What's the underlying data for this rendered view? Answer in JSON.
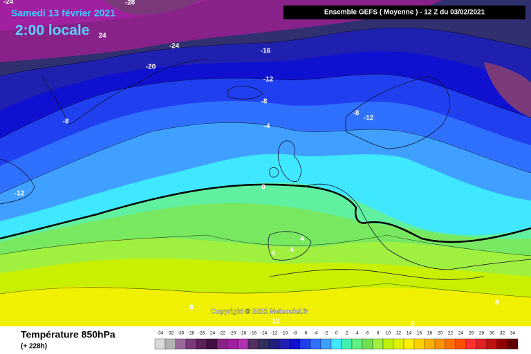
{
  "title": "Samedi 13 février 2021",
  "subtitle": "2:00 locale",
  "header": "Ensemble GEFS  ( Moyenne )  - 12 Z du 03/02/2021",
  "copyright": "Copyright © 2021 Meteociel.fr",
  "contour_labels": [
    "-24",
    "-28",
    "24",
    "-24",
    "-20",
    "-16",
    "-12",
    "-8",
    "-8",
    "-4",
    "-8",
    "-12",
    "-12",
    "0",
    "4",
    "4",
    "4",
    "8",
    "8",
    "12",
    "8"
  ],
  "footer": {
    "title": "Température 850hPa",
    "subtitle": "(+ 228h)"
  },
  "scale": {
    "values": [
      -34,
      -32,
      -30,
      -28,
      -26,
      -24,
      -22,
      -20,
      -18,
      -16,
      -14,
      -12,
      -10,
      -8,
      -6,
      -4,
      -2,
      0,
      2,
      4,
      6,
      8,
      10,
      12,
      14,
      16,
      18,
      20,
      22,
      24,
      26,
      28,
      30,
      32,
      34
    ],
    "colors": [
      "#d9d9d9",
      "#b3b3b3",
      "#9a6a9a",
      "#7a3a7a",
      "#5a205a",
      "#401040",
      "#882288",
      "#a020a0",
      "#b030b0",
      "#503060",
      "#303060",
      "#202080",
      "#2020b0",
      "#1010d0",
      "#2040f0",
      "#3070ff",
      "#40a0ff",
      "#40e8ff",
      "#40f0b0",
      "#60f080",
      "#70e050",
      "#a0f040",
      "#c0f000",
      "#e0f000",
      "#fff000",
      "#ffd000",
      "#ffb000",
      "#ff9000",
      "#ff7000",
      "#ff5000",
      "#ff3030",
      "#e02020",
      "#c01010",
      "#900000",
      "#600000"
    ]
  }
}
